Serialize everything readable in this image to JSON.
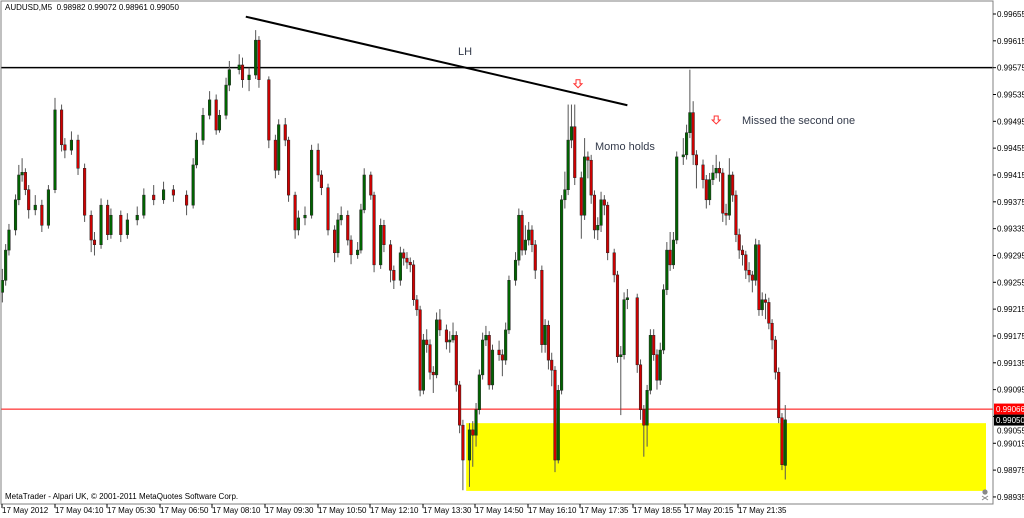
{
  "header": {
    "symbol_info": "AUDUSD,M5  0.98982 0.99072 0.98961 0.99050"
  },
  "footer": {
    "copyright": "MetaTrader - Alpari UK, © 2001-2011 MetaQuotes Software Corp."
  },
  "annotations": {
    "lh": "LH",
    "momo": "Momo holds",
    "missed": "Missed the second one"
  },
  "icons": {
    "sell_arrow": "down-arrow-outline",
    "chart_end_marker": "skull-icon"
  },
  "colors": {
    "bull": "#006400",
    "bear": "#d00000",
    "wick": "#555555",
    "zone": "#ffff00",
    "support_line": "#ff0000",
    "resistance_line": "#000000",
    "trendline": "#000000",
    "arrow": "#ff3030"
  },
  "chart_data": {
    "type": "candlestick",
    "symbol": "AUDUSD",
    "timeframe": "M5",
    "date": "17 May 2012",
    "ylim": [
      0.98915,
      0.99675
    ],
    "y_ticks": [
      "0.99655",
      "0.99615",
      "0.99575",
      "0.99535",
      "0.99495",
      "0.99455",
      "0.99415",
      "0.99375",
      "0.99335",
      "0.99295",
      "0.99255",
      "0.99215",
      "0.99175",
      "0.99135",
      "0.99095",
      "0.99055",
      "0.99015",
      "0.98975",
      "0.98935"
    ],
    "x_tick_labels": [
      "17 May 2012",
      "17 May 04:10",
      "17 May 05:30",
      "17 May 06:50",
      "17 May 08:10",
      "17 May 09:30",
      "17 May 10:50",
      "17 May 12:10",
      "17 May 13:30",
      "17 May 14:50",
      "17 May 16:10",
      "17 May 17:35",
      "17 May 18:55",
      "17 May 20:15",
      "17 May 21:35"
    ],
    "horizontal_lines": [
      {
        "price": 0.99575,
        "color": "#000000"
      },
      {
        "price": 0.99066,
        "color": "#ff0000",
        "label": "0.99066"
      }
    ],
    "current_price": {
      "price": 0.9905,
      "label": "0.99050"
    },
    "trendline": {
      "from": {
        "time": "09:00",
        "price": 0.99651
      },
      "to": {
        "time": "18:40",
        "price": 0.99519
      }
    },
    "zone": {
      "time_start": "14:35",
      "price_top": 0.99045,
      "price_bottom": 0.98944,
      "extends_right": true
    },
    "arrows": [
      {
        "time": "17:25",
        "price": 0.99551
      },
      {
        "time": "20:55",
        "price": 0.99497
      }
    ],
    "candle_fields": [
      "time",
      "open",
      "high",
      "low",
      "close"
    ],
    "candles": [
      [
        "02:50",
        0.9924,
        0.99275,
        0.99225,
        0.99258
      ],
      [
        "02:55",
        0.99258,
        0.99312,
        0.9925,
        0.99303
      ],
      [
        "03:00",
        0.99303,
        0.99342,
        0.99295,
        0.99333
      ],
      [
        "03:10",
        0.99333,
        0.99386,
        0.99325,
        0.99378
      ],
      [
        "03:15",
        0.99378,
        0.9943,
        0.9937,
        0.99415
      ],
      [
        "03:20",
        0.99415,
        0.9944,
        0.99405,
        0.99419
      ],
      [
        "03:25",
        0.99419,
        0.99425,
        0.99385,
        0.99393
      ],
      [
        "03:30",
        0.99393,
        0.994,
        0.9935,
        0.99363
      ],
      [
        "03:40",
        0.99363,
        0.99385,
        0.99355,
        0.9937
      ],
      [
        "03:50",
        0.9937,
        0.99378,
        0.9933,
        0.9934
      ],
      [
        "04:00",
        0.9934,
        0.994,
        0.99335,
        0.99393
      ],
      [
        "04:10",
        0.99393,
        0.9953,
        0.99388,
        0.99512
      ],
      [
        "04:20",
        0.99512,
        0.9952,
        0.9945,
        0.9946
      ],
      [
        "04:25",
        0.9946,
        0.9947,
        0.9944,
        0.99452
      ],
      [
        "04:35",
        0.99452,
        0.9948,
        0.99445,
        0.99467
      ],
      [
        "04:45",
        0.99467,
        0.99475,
        0.99415,
        0.99425
      ],
      [
        "04:55",
        0.99425,
        0.99432,
        0.99345,
        0.99355
      ],
      [
        "05:05",
        0.99355,
        0.99362,
        0.993,
        0.99318
      ],
      [
        "05:10",
        0.99318,
        0.9933,
        0.99295,
        0.99311
      ],
      [
        "05:20",
        0.99311,
        0.9938,
        0.99305,
        0.9937
      ],
      [
        "05:30",
        0.9937,
        0.99378,
        0.99318,
        0.99326
      ],
      [
        "05:35",
        0.99326,
        0.99365,
        0.9932,
        0.99355
      ],
      [
        "05:50",
        0.99355,
        0.99362,
        0.99315,
        0.99326
      ],
      [
        "06:00",
        0.99326,
        0.99358,
        0.9932,
        0.99348
      ],
      [
        "06:15",
        0.99348,
        0.99368,
        0.9934,
        0.99355
      ],
      [
        "06:25",
        0.99355,
        0.99395,
        0.9935,
        0.99385
      ],
      [
        "06:40",
        0.99385,
        0.994,
        0.9937,
        0.99378
      ],
      [
        "06:55",
        0.99378,
        0.99405,
        0.99372,
        0.99393
      ],
      [
        "07:10",
        0.99393,
        0.994,
        0.99375,
        0.99385
      ],
      [
        "07:30",
        0.99385,
        0.99392,
        0.99355,
        0.9937
      ],
      [
        "07:40",
        0.9937,
        0.9944,
        0.99365,
        0.9943
      ],
      [
        "07:45",
        0.9943,
        0.99478,
        0.99425,
        0.99467
      ],
      [
        "07:55",
        0.99467,
        0.99515,
        0.9946,
        0.99504
      ],
      [
        "08:05",
        0.99504,
        0.9954,
        0.99498,
        0.99527
      ],
      [
        "08:15",
        0.99527,
        0.99535,
        0.99475,
        0.99482
      ],
      [
        "08:20",
        0.99482,
        0.99512,
        0.99478,
        0.99504
      ],
      [
        "08:30",
        0.99504,
        0.9956,
        0.99498,
        0.99549
      ],
      [
        "08:35",
        0.99549,
        0.99585,
        0.9954,
        0.99572
      ],
      [
        "08:50",
        0.99572,
        0.99595,
        0.99565,
        0.99579
      ],
      [
        "08:55",
        0.99579,
        0.9959,
        0.99545,
        0.99557
      ],
      [
        "09:05",
        0.99557,
        0.99575,
        0.9954,
        0.99564
      ],
      [
        "09:15",
        0.99564,
        0.99631,
        0.99558,
        0.99616
      ],
      [
        "09:20",
        0.99616,
        0.99622,
        0.99545,
        0.99557
      ],
      [
        "09:35",
        0.99557,
        0.99562,
        0.99455,
        0.99467
      ],
      [
        "09:45",
        0.99467,
        0.99475,
        0.9941,
        0.99422
      ],
      [
        "09:50",
        0.99422,
        0.99498,
        0.99415,
        0.9949
      ],
      [
        "10:00",
        0.9949,
        0.995,
        0.99458,
        0.99467
      ],
      [
        "10:05",
        0.99467,
        0.99472,
        0.99375,
        0.99385
      ],
      [
        "10:15",
        0.99385,
        0.9939,
        0.9932,
        0.99333
      ],
      [
        "10:20",
        0.99333,
        0.99362,
        0.99325,
        0.99351
      ],
      [
        "10:30",
        0.99351,
        0.99368,
        0.9934,
        0.99355
      ],
      [
        "10:40",
        0.99355,
        0.9946,
        0.9935,
        0.99452
      ],
      [
        "10:50",
        0.99452,
        0.99462,
        0.99405,
        0.99415
      ],
      [
        "10:55",
        0.99415,
        0.99422,
        0.99385,
        0.99396
      ],
      [
        "11:05",
        0.99396,
        0.99402,
        0.99325,
        0.99333
      ],
      [
        "11:15",
        0.99333,
        0.9934,
        0.99285,
        0.99299
      ],
      [
        "11:20",
        0.99299,
        0.99358,
        0.99292,
        0.99348
      ],
      [
        "11:25",
        0.99348,
        0.99368,
        0.9934,
        0.99355
      ],
      [
        "11:35",
        0.99355,
        0.99362,
        0.9931,
        0.99318
      ],
      [
        "11:40",
        0.99318,
        0.99325,
        0.99282,
        0.99296
      ],
      [
        "11:50",
        0.99296,
        0.99315,
        0.9929,
        0.99303
      ],
      [
        "11:55",
        0.99303,
        0.99372,
        0.99298,
        0.99363
      ],
      [
        "12:00",
        0.99363,
        0.99425,
        0.99358,
        0.99415
      ],
      [
        "12:10",
        0.99415,
        0.9942,
        0.99378,
        0.99385
      ],
      [
        "12:15",
        0.99385,
        0.9939,
        0.9927,
        0.99281
      ],
      [
        "12:25",
        0.99281,
        0.9935,
        0.99275,
        0.9934
      ],
      [
        "12:30",
        0.9934,
        0.99348,
        0.993,
        0.99311
      ],
      [
        "12:40",
        0.99311,
        0.99318,
        0.99255,
        0.99273
      ],
      [
        "12:45",
        0.99273,
        0.9928,
        0.99245,
        0.99258
      ],
      [
        "12:55",
        0.99258,
        0.99308,
        0.9925,
        0.99299
      ],
      [
        "13:00",
        0.99299,
        0.99305,
        0.9928,
        0.99291
      ],
      [
        "13:05",
        0.99291,
        0.993,
        0.99275,
        0.99285
      ],
      [
        "13:10",
        0.99285,
        0.99292,
        0.9927,
        0.99281
      ],
      [
        "13:15",
        0.99281,
        0.99288,
        0.9922,
        0.99229
      ],
      [
        "13:20",
        0.99229,
        0.99236,
        0.99205,
        0.99214
      ],
      [
        "13:25",
        0.99214,
        0.9922,
        0.99085,
        0.99094
      ],
      [
        "13:30",
        0.99094,
        0.99178,
        0.99088,
        0.99169
      ],
      [
        "13:35",
        0.99169,
        0.99185,
        0.9915,
        0.99162
      ],
      [
        "13:40",
        0.99162,
        0.9917,
        0.9911,
        0.99121
      ],
      [
        "13:45",
        0.99121,
        0.9913,
        0.9909,
        0.99117
      ],
      [
        "13:50",
        0.99117,
        0.9921,
        0.99112,
        0.99199
      ],
      [
        "13:55",
        0.99199,
        0.99215,
        0.99175,
        0.99184
      ],
      [
        "14:05",
        0.99184,
        0.99192,
        0.99155,
        0.99166
      ],
      [
        "14:10",
        0.99166,
        0.99182,
        0.9915,
        0.99169
      ],
      [
        "14:15",
        0.99169,
        0.99195,
        0.99165,
        0.99176
      ],
      [
        "14:20",
        0.99176,
        0.99182,
        0.99092,
        0.99102
      ],
      [
        "14:25",
        0.99102,
        0.99108,
        0.9903,
        0.99042
      ],
      [
        "14:30",
        0.99042,
        0.9905,
        0.98945,
        0.9899
      ],
      [
        "14:40",
        0.9899,
        0.99045,
        0.9895,
        0.99035
      ],
      [
        "14:45",
        0.99035,
        0.99048,
        0.9898,
        0.99027
      ],
      [
        "14:50",
        0.99027,
        0.99075,
        0.9901,
        0.99065
      ],
      [
        "14:55",
        0.99065,
        0.99125,
        0.99058,
        0.99117
      ],
      [
        "15:00",
        0.99117,
        0.9918,
        0.9911,
        0.99169
      ],
      [
        "15:05",
        0.99169,
        0.9919,
        0.9916,
        0.99176
      ],
      [
        "15:10",
        0.99176,
        0.99182,
        0.99095,
        0.99102
      ],
      [
        "15:15",
        0.99102,
        0.99162,
        0.99095,
        0.99154
      ],
      [
        "15:25",
        0.99154,
        0.99168,
        0.99138,
        0.99147
      ],
      [
        "15:30",
        0.99147,
        0.99155,
        0.99115,
        0.99139
      ],
      [
        "15:35",
        0.99139,
        0.99195,
        0.99132,
        0.99184
      ],
      [
        "15:40",
        0.99184,
        0.99265,
        0.99178,
        0.99258
      ],
      [
        "15:50",
        0.99258,
        0.993,
        0.9925,
        0.99288
      ],
      [
        "15:55",
        0.99288,
        0.99365,
        0.9928,
        0.99355
      ],
      [
        "16:00",
        0.99355,
        0.99362,
        0.99295,
        0.99303
      ],
      [
        "16:05",
        0.99303,
        0.9934,
        0.99296,
        0.99318
      ],
      [
        "16:10",
        0.99318,
        0.99345,
        0.9931,
        0.99333
      ],
      [
        "16:15",
        0.99333,
        0.9934,
        0.993,
        0.99311
      ],
      [
        "16:20",
        0.99311,
        0.99318,
        0.9926,
        0.99273
      ],
      [
        "16:30",
        0.99273,
        0.9928,
        0.9915,
        0.99162
      ],
      [
        "16:35",
        0.99162,
        0.992,
        0.9915,
        0.99191
      ],
      [
        "16:40",
        0.99191,
        0.99198,
        0.99125,
        0.99139
      ],
      [
        "16:45",
        0.99139,
        0.9915,
        0.991,
        0.99124
      ],
      [
        "16:50",
        0.99124,
        0.9913,
        0.98972,
        0.9899
      ],
      [
        "16:55",
        0.9899,
        0.99102,
        0.98985,
        0.99094
      ],
      [
        "17:00",
        0.99094,
        0.99385,
        0.99088,
        0.99378
      ],
      [
        "17:05",
        0.99378,
        0.9942,
        0.99365,
        0.99393
      ],
      [
        "17:10",
        0.99393,
        0.9952,
        0.99385,
        0.99467
      ],
      [
        "17:15",
        0.99467,
        0.9952,
        0.99455,
        0.99487
      ],
      [
        "17:20",
        0.99487,
        0.9952,
        0.994,
        0.99411
      ],
      [
        "17:30",
        0.99411,
        0.9942,
        0.9932,
        0.99355
      ],
      [
        "17:35",
        0.99355,
        0.9947,
        0.99348,
        0.99442
      ],
      [
        "17:40",
        0.99442,
        0.9945,
        0.9941,
        0.99437
      ],
      [
        "17:45",
        0.99437,
        0.99445,
        0.99372,
        0.99385
      ],
      [
        "17:50",
        0.99385,
        0.99392,
        0.9932,
        0.99333
      ],
      [
        "17:55",
        0.99333,
        0.99352,
        0.99318,
        0.9934
      ],
      [
        "18:00",
        0.9934,
        0.9939,
        0.9933,
        0.99378
      ],
      [
        "18:05",
        0.99378,
        0.99385,
        0.99355,
        0.9937
      ],
      [
        "18:10",
        0.9937,
        0.99375,
        0.99288,
        0.99299
      ],
      [
        "18:20",
        0.99299,
        0.99305,
        0.99255,
        0.99266
      ],
      [
        "18:25",
        0.99266,
        0.99272,
        0.99135,
        0.99144
      ],
      [
        "18:30",
        0.99144,
        0.9916,
        0.99057,
        0.99147
      ],
      [
        "18:35",
        0.99147,
        0.9924,
        0.9914,
        0.99229
      ],
      [
        "18:40",
        0.99229,
        0.99245,
        0.99215,
        0.99232
      ],
      [
        "18:55",
        0.99232,
        0.99238,
        0.9912,
        0.99132
      ],
      [
        "19:00",
        0.99132,
        0.9914,
        0.9905,
        0.99065
      ],
      [
        "19:05",
        0.99065,
        0.99072,
        0.98995,
        0.99042
      ],
      [
        "19:10",
        0.99042,
        0.99102,
        0.9901,
        0.99094
      ],
      [
        "19:15",
        0.99094,
        0.99185,
        0.99088,
        0.99176
      ],
      [
        "19:20",
        0.99176,
        0.99185,
        0.99138,
        0.99147
      ],
      [
        "19:25",
        0.99147,
        0.99155,
        0.99095,
        0.99109
      ],
      [
        "19:30",
        0.99109,
        0.99165,
        0.99102,
        0.99154
      ],
      [
        "19:35",
        0.99154,
        0.99252,
        0.99148,
        0.99244
      ],
      [
        "19:40",
        0.99244,
        0.99315,
        0.99236,
        0.99303
      ],
      [
        "19:45",
        0.99303,
        0.9933,
        0.99272,
        0.99281
      ],
      [
        "19:50",
        0.99281,
        0.9933,
        0.99275,
        0.99318
      ],
      [
        "19:55",
        0.99318,
        0.9945,
        0.99312,
        0.99442
      ],
      [
        "20:05",
        0.99442,
        0.9947,
        0.9943,
        0.99445
      ],
      [
        "20:10",
        0.99445,
        0.9949,
        0.99438,
        0.99478
      ],
      [
        "20:15",
        0.99478,
        0.99572,
        0.9947,
        0.99508
      ],
      [
        "20:20",
        0.99508,
        0.99525,
        0.9943,
        0.99445
      ],
      [
        "20:25",
        0.99445,
        0.99452,
        0.99395,
        0.9943
      ],
      [
        "20:35",
        0.9943,
        0.99438,
        0.99395,
        0.99408
      ],
      [
        "20:40",
        0.99408,
        0.99415,
        0.99365,
        0.99378
      ],
      [
        "20:45",
        0.99378,
        0.99418,
        0.9937,
        0.99408
      ],
      [
        "20:50",
        0.99408,
        0.9943,
        0.994,
        0.99418
      ],
      [
        "20:55",
        0.99418,
        0.99445,
        0.9941,
        0.99425
      ],
      [
        "21:00",
        0.99425,
        0.99435,
        0.99405,
        0.99418
      ],
      [
        "21:05",
        0.99418,
        0.99425,
        0.99345,
        0.99358
      ],
      [
        "21:10",
        0.99358,
        0.99372,
        0.9934,
        0.99355
      ],
      [
        "21:15",
        0.99355,
        0.9944,
        0.99348,
        0.99415
      ],
      [
        "21:20",
        0.99415,
        0.9942,
        0.99375,
        0.99385
      ],
      [
        "21:25",
        0.99385,
        0.99392,
        0.99315,
        0.99326
      ],
      [
        "21:30",
        0.99326,
        0.99335,
        0.9929,
        0.99303
      ],
      [
        "21:35",
        0.99303,
        0.9931,
        0.9928,
        0.99296
      ],
      [
        "21:40",
        0.99296,
        0.99302,
        0.9926,
        0.99273
      ],
      [
        "21:45",
        0.99273,
        0.99285,
        0.99255,
        0.99266
      ],
      [
        "21:50",
        0.99266,
        0.99272,
        0.9924,
        0.99258
      ],
      [
        "21:55",
        0.99258,
        0.9932,
        0.9925,
        0.99311
      ],
      [
        "22:00",
        0.99311,
        0.99318,
        0.99205,
        0.99214
      ],
      [
        "22:05",
        0.99214,
        0.9924,
        0.99205,
        0.99229
      ],
      [
        "22:10",
        0.99229,
        0.99238,
        0.992,
        0.99225
      ],
      [
        "22:15",
        0.99225,
        0.99232,
        0.99185,
        0.99194
      ],
      [
        "22:20",
        0.99194,
        0.992,
        0.99155,
        0.99169
      ],
      [
        "22:25",
        0.99169,
        0.99175,
        0.9911,
        0.99121
      ],
      [
        "22:30",
        0.99121,
        0.99128,
        0.99045,
        0.99053
      ],
      [
        "22:35",
        0.99053,
        0.9906,
        0.98975,
        0.98983
      ],
      [
        "22:40",
        0.98982,
        0.99072,
        0.98961,
        0.9905
      ]
    ]
  }
}
